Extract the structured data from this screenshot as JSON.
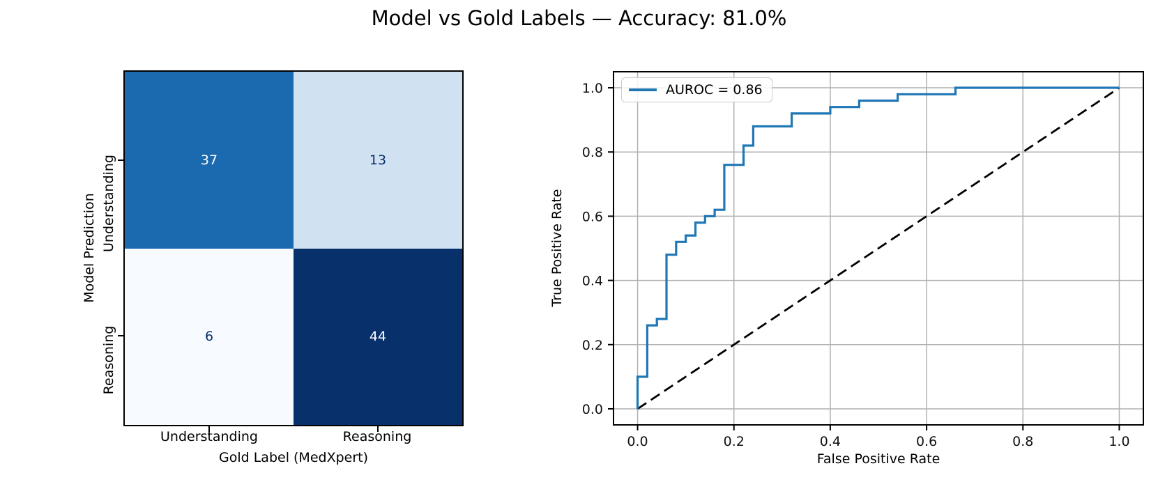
{
  "title": "Model vs Gold Labels — Accuracy: 81.0%",
  "colors": {
    "roc_line": "#1f77b4",
    "diagonal": "#000000",
    "grid": "#b0b0b0",
    "spine": "#000000",
    "heatmap_dark": "#08306b",
    "heatmap_light": "#f7fbff"
  },
  "chart_data": [
    {
      "type": "heatmap",
      "xlabel": "Gold Label (MedXpert)",
      "ylabel": "Model Prediction",
      "x_categories": [
        "Understanding",
        "Reasoning"
      ],
      "y_categories": [
        "Understanding",
        "Reasoning"
      ],
      "values": [
        [
          37,
          13
        ],
        [
          6,
          44
        ]
      ],
      "cell_colors": [
        [
          "#1b69af",
          "#d0e1f2"
        ],
        [
          "#f7fbff",
          "#08306b"
        ]
      ],
      "text_colors": [
        [
          "#ffffff",
          "#08306b"
        ],
        [
          "#08306b",
          "#ffffff"
        ]
      ],
      "colormap": "Blues",
      "grid": false
    },
    {
      "type": "line",
      "xlabel": "False Positive Rate",
      "ylabel": "True Positive Rate",
      "legend": "AUROC = 0.86",
      "legend_position": "upper left",
      "grid": true,
      "xlim": [
        -0.05,
        1.05
      ],
      "ylim": [
        -0.05,
        1.05
      ],
      "x_ticks": [
        "0.0",
        "0.2",
        "0.4",
        "0.6",
        "0.8",
        "1.0"
      ],
      "y_ticks": [
        "0.0",
        "0.2",
        "0.4",
        "0.6",
        "0.8",
        "1.0"
      ],
      "series": [
        {
          "name": "ROC curve",
          "color": "#1f77b4",
          "style": "solid",
          "points": [
            [
              0.0,
              0.0
            ],
            [
              0.0,
              0.1
            ],
            [
              0.02,
              0.1
            ],
            [
              0.02,
              0.26
            ],
            [
              0.04,
              0.26
            ],
            [
              0.04,
              0.28
            ],
            [
              0.06,
              0.28
            ],
            [
              0.06,
              0.48
            ],
            [
              0.08,
              0.48
            ],
            [
              0.08,
              0.52
            ],
            [
              0.1,
              0.52
            ],
            [
              0.1,
              0.54
            ],
            [
              0.12,
              0.54
            ],
            [
              0.12,
              0.58
            ],
            [
              0.14,
              0.58
            ],
            [
              0.14,
              0.6
            ],
            [
              0.16,
              0.6
            ],
            [
              0.16,
              0.62
            ],
            [
              0.18,
              0.62
            ],
            [
              0.18,
              0.76
            ],
            [
              0.22,
              0.76
            ],
            [
              0.22,
              0.82
            ],
            [
              0.24,
              0.82
            ],
            [
              0.24,
              0.88
            ],
            [
              0.32,
              0.88
            ],
            [
              0.32,
              0.92
            ],
            [
              0.4,
              0.92
            ],
            [
              0.4,
              0.94
            ],
            [
              0.46,
              0.94
            ],
            [
              0.46,
              0.96
            ],
            [
              0.54,
              0.96
            ],
            [
              0.54,
              0.98
            ],
            [
              0.66,
              0.98
            ],
            [
              0.66,
              1.0
            ],
            [
              1.0,
              1.0
            ]
          ]
        },
        {
          "name": "chance diagonal",
          "color": "#000000",
          "style": "dashed",
          "points": [
            [
              0.0,
              0.0
            ],
            [
              1.0,
              1.0
            ]
          ]
        }
      ]
    }
  ]
}
